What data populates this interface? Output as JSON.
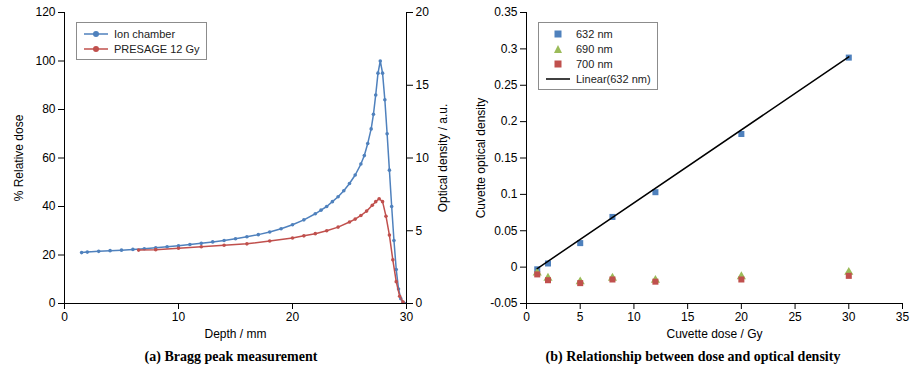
{
  "chart_data": [
    {
      "type": "line",
      "title": "(a) Bragg peak measurement",
      "xlabel": "Depth / mm",
      "ylabel": "% Relative dose",
      "y2label": "Optical density / a.u.",
      "xlim": [
        0,
        30
      ],
      "xticks": [
        0,
        10,
        20,
        30
      ],
      "ylim": [
        0,
        120
      ],
      "yticks": [
        0,
        20,
        40,
        60,
        80,
        100,
        120
      ],
      "y2lim": [
        0,
        20
      ],
      "y2ticks": [
        0,
        5,
        10,
        15,
        20
      ],
      "legend": "upper left",
      "series": [
        {
          "name": "Ion chamber",
          "color": "#4f81bd",
          "marker": "circle",
          "x": [
            1.5,
            2,
            3,
            4,
            5,
            6,
            7,
            8,
            9,
            10,
            11,
            12,
            13,
            14,
            15,
            16,
            17,
            18,
            19,
            20,
            21,
            22,
            22.5,
            23,
            23.5,
            24,
            24.5,
            25,
            25.5,
            26,
            26.3,
            26.6,
            26.9,
            27.1,
            27.3,
            27.5,
            27.7,
            27.9,
            28.1,
            28.3,
            28.5,
            28.7,
            28.9,
            29.1,
            29.3,
            29.5,
            29.7,
            30
          ],
          "values": [
            21,
            21.2,
            21.5,
            21.8,
            22,
            22.3,
            22.6,
            23,
            23.4,
            23.8,
            24.3,
            24.8,
            25.4,
            26,
            26.7,
            27.5,
            28.4,
            29.5,
            30.8,
            32.5,
            34.5,
            37,
            38.5,
            40,
            42,
            44,
            46.5,
            49.5,
            53,
            57.5,
            61,
            66,
            72,
            78,
            86,
            95,
            100,
            95,
            84,
            70,
            55,
            40,
            26,
            14,
            6,
            2,
            0.5,
            0
          ]
        },
        {
          "name": "PRESAGE 12 Gy",
          "color": "#c0504d",
          "marker": "circle",
          "axis": "y2",
          "x": [
            6.5,
            8,
            10,
            12,
            14,
            16,
            18,
            20,
            21,
            22,
            23,
            24,
            25,
            25.5,
            26,
            26.5,
            27,
            27.3,
            27.6,
            27.9,
            28.2,
            28.5,
            28.8,
            29.1,
            29.4,
            29.7
          ],
          "values": [
            3.67,
            3.7,
            3.8,
            3.9,
            4.0,
            4.1,
            4.3,
            4.5,
            4.65,
            4.8,
            5.0,
            5.25,
            5.6,
            5.8,
            6.05,
            6.35,
            6.75,
            7.0,
            7.2,
            7.0,
            6.0,
            4.7,
            3.0,
            1.5,
            0.5,
            0.1
          ]
        }
      ]
    },
    {
      "type": "scatter",
      "title": "(b) Relationship between dose and optical density",
      "xlabel": "Cuvette dose / Gy",
      "ylabel": "Cuvette optical density",
      "x": [
        1,
        2,
        5,
        8,
        12,
        20,
        30
      ],
      "xlim": [
        0,
        35
      ],
      "xticks": [
        0,
        5,
        10,
        15,
        20,
        25,
        30,
        35
      ],
      "ylim": [
        -0.05,
        0.35
      ],
      "yticks": [
        -0.05,
        0,
        0.05,
        0.1,
        0.15,
        0.2,
        0.25,
        0.3,
        0.35
      ],
      "legend": "upper left",
      "series": [
        {
          "name": "632 nm",
          "color": "#4f81bd",
          "marker": "square",
          "values": [
            -0.003,
            0.005,
            0.033,
            0.069,
            0.103,
            0.183,
            0.288
          ]
        },
        {
          "name": "690 nm",
          "color": "#9bbb59",
          "marker": "triangle",
          "values": [
            -0.008,
            -0.015,
            -0.02,
            -0.015,
            -0.018,
            -0.013,
            -0.007
          ]
        },
        {
          "name": "700 nm",
          "color": "#c0504d",
          "marker": "square",
          "values": [
            -0.01,
            -0.018,
            -0.022,
            -0.017,
            -0.02,
            -0.017,
            -0.012
          ]
        },
        {
          "name": "Linear(632 nm)",
          "type": "line",
          "color": "#000000",
          "line_style": "solid",
          "x": [
            1,
            30
          ],
          "values": [
            -0.002,
            0.289
          ]
        }
      ]
    }
  ]
}
